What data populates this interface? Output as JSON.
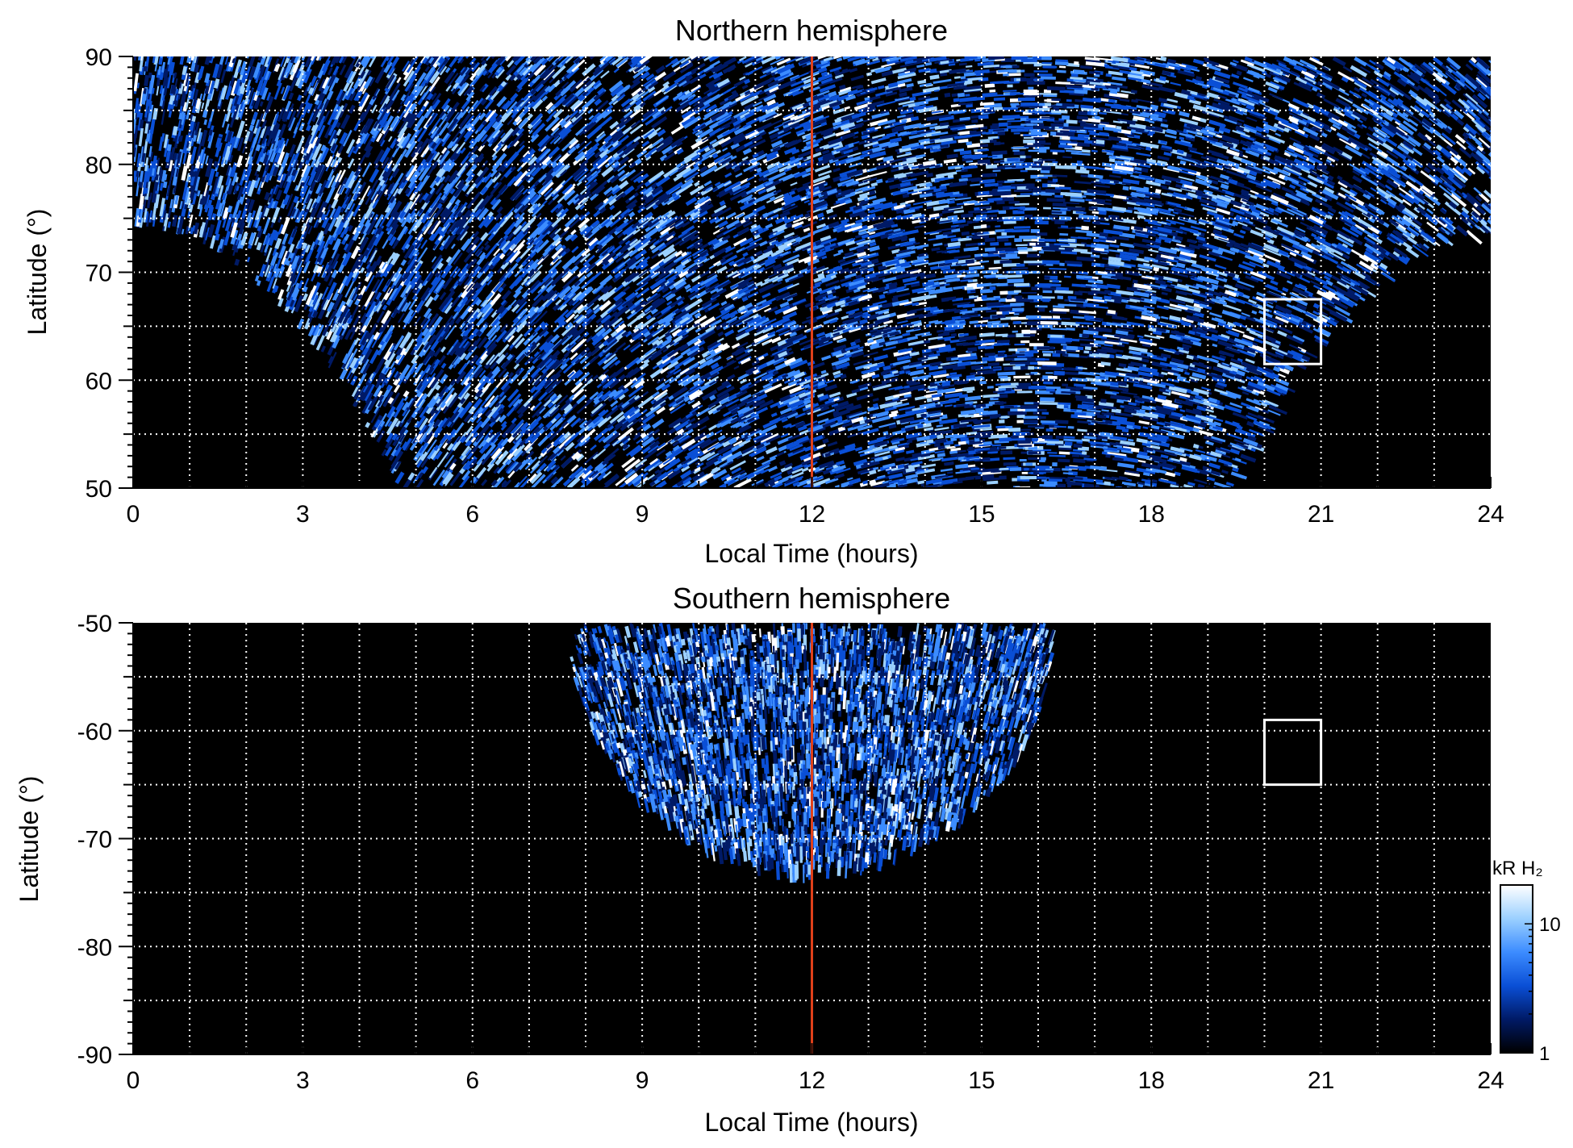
{
  "colors": {
    "background": "#000000",
    "grid": "#ffffff",
    "noon_line": "#e0401a",
    "highlight_box": "#ffffff",
    "colormap": [
      "#000000",
      "#001a66",
      "#0a4fd6",
      "#3c8cff",
      "#9bd0ff",
      "#ffffff"
    ]
  },
  "chart_data": [
    {
      "type": "heatmap",
      "title": "Northern hemisphere",
      "xlabel": "Local Time (hours)",
      "ylabel": "Latitude (°)",
      "xlim": [
        0,
        24
      ],
      "ylim": [
        50,
        90
      ],
      "xticks": [
        0,
        3,
        6,
        9,
        12,
        15,
        18,
        21,
        24
      ],
      "yticks": [
        50,
        60,
        70,
        80,
        90
      ],
      "xticklabels": [
        "0",
        "3",
        "6",
        "9",
        "12",
        "15",
        "18",
        "21",
        "24"
      ],
      "yticklabels": [
        "50",
        "60",
        "70",
        "80",
        "90"
      ],
      "grid": true,
      "grid_x_step": 1,
      "grid_y_step": 5,
      "reference_line": {
        "x": 12
      },
      "highlight_box": {
        "x": [
          20,
          21
        ],
        "y": [
          61.5,
          67.5
        ]
      },
      "coverage": {
        "noon": 12,
        "width_at_limit": 7.3,
        "lat_limit": 50,
        "lat_full": 74
      }
    },
    {
      "type": "heatmap",
      "title": "Southern hemisphere",
      "xlabel": "Local Time (hours)",
      "ylabel": "Latitude (°)",
      "xlim": [
        0,
        24
      ],
      "ylim": [
        -90,
        -50
      ],
      "xticks": [
        0,
        3,
        6,
        9,
        12,
        15,
        18,
        21,
        24
      ],
      "yticks": [
        -90,
        -80,
        -70,
        -60,
        -50
      ],
      "xticklabels": [
        "0",
        "3",
        "6",
        "9",
        "12",
        "15",
        "18",
        "21",
        "24"
      ],
      "yticklabels": [
        "-90",
        "-80",
        "-70",
        "-60",
        "-50"
      ],
      "grid": true,
      "grid_x_step": 1,
      "grid_y_step": 5,
      "reference_line": {
        "x": 12
      },
      "highlight_box": {
        "x": [
          20,
          21
        ],
        "y": [
          -65,
          -59
        ]
      },
      "coverage": {
        "noon": 12,
        "width_at_limit": 4.3,
        "lat_limit": -50,
        "lat_full": -72.5
      }
    }
  ],
  "colorbar": {
    "label": "kR H₂",
    "scale": "log",
    "ticks": [
      1,
      10
    ],
    "ticklabels": [
      "1",
      "10"
    ],
    "range": [
      1,
      20
    ]
  }
}
